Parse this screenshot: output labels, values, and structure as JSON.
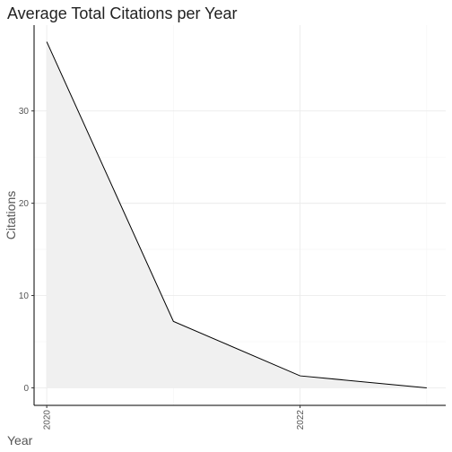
{
  "chart_data": {
    "type": "area",
    "title": "Average Total Citations per Year",
    "xlabel": "Year",
    "ylabel": "Citations",
    "x": [
      2020,
      2021,
      2022,
      2023
    ],
    "series": [
      {
        "values": [
          37.5,
          7.2,
          1.3,
          0.0
        ]
      }
    ],
    "x_ticks": [
      2020,
      2022
    ],
    "y_ticks": [
      0,
      10,
      20,
      30
    ],
    "xlim": [
      2019.9,
      2023.15
    ],
    "ylim": [
      -1.9,
      39.3
    ],
    "grid": true,
    "line_color": "#000000",
    "fill_color": "#f0f0f0"
  }
}
